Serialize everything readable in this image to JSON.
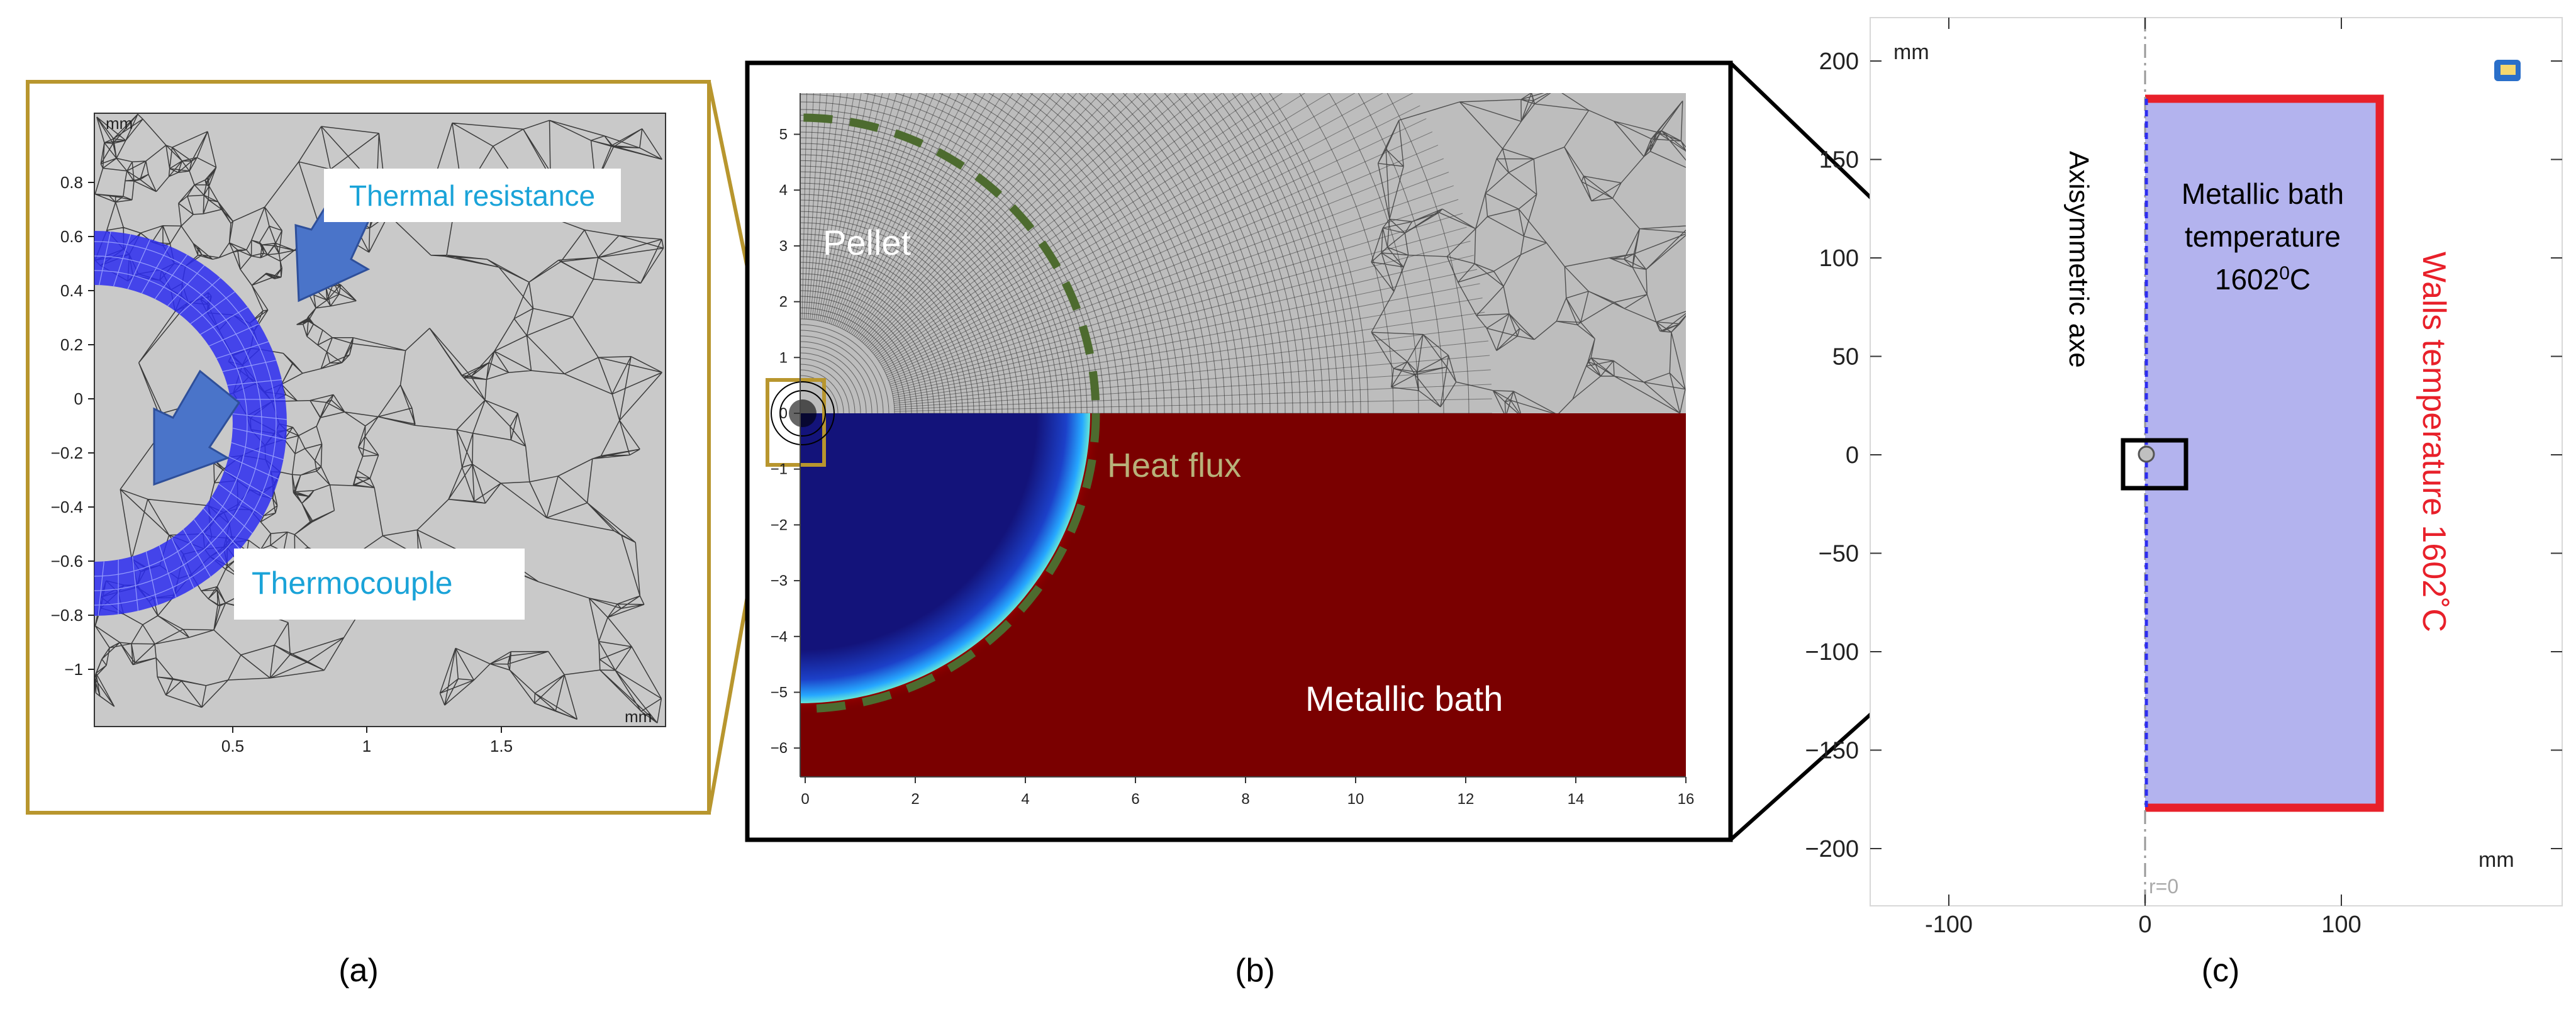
{
  "panel_a": {
    "unit_top": "mm",
    "unit_bottom": "mm",
    "y_ticks": [
      "0.8",
      "0.6",
      "0.4",
      "0.2",
      "0",
      "−0.2",
      "−0.4",
      "−0.6",
      "−0.8",
      "−1"
    ],
    "x_ticks": [
      "0.5",
      "1",
      "1.5"
    ],
    "label_thermal_resistance": "Thermal resistance",
    "label_thermocouple": "Thermocouple",
    "caption": "(a)",
    "colors": {
      "frame": "#b8962e",
      "ring": "#2d2df0",
      "mesh_bg": "#c9c9c9",
      "arrow": "#4a74c9",
      "label_text": "#1aa3d8"
    }
  },
  "panel_b": {
    "y_ticks": [
      "5",
      "4",
      "3",
      "2",
      "1",
      "0",
      "−1",
      "−2",
      "−3",
      "−4",
      "−5",
      "−6"
    ],
    "x_ticks": [
      "0",
      "2",
      "4",
      "6",
      "8",
      "10",
      "12",
      "14",
      "16"
    ],
    "label_pellet": "Pellet",
    "label_heat_flux": "Heat flux",
    "label_metallic_bath": "Metallic bath",
    "caption": "(b)",
    "colors": {
      "bath": "#7a0000",
      "pellet": "#13137a",
      "heat_flux": "#b8b27a",
      "dash": "#4d6b2f"
    }
  },
  "panel_c": {
    "unit_top": "mm",
    "unit_bottom": "mm",
    "y_ticks": [
      "200",
      "150",
      "100",
      "50",
      "0",
      "−50",
      "−100",
      "−150",
      "−200"
    ],
    "x_ticks": [
      "-100",
      "0",
      "100"
    ],
    "r0_label": "r=0",
    "axis_label": "Axisymmetric axe",
    "bath_label_line1": "Metallic bath",
    "bath_label_line2": "temperature",
    "bath_label_line3_value": "1602",
    "bath_label_line3_sup": "0",
    "bath_label_line3_unit": "C",
    "walls_label": "Walls temperature 1602˚C",
    "caption": "(c)",
    "colors": {
      "bath_fill": "#b3b3ee",
      "walls": "#e8202a",
      "axis_dash": "#2d2df0"
    }
  }
}
